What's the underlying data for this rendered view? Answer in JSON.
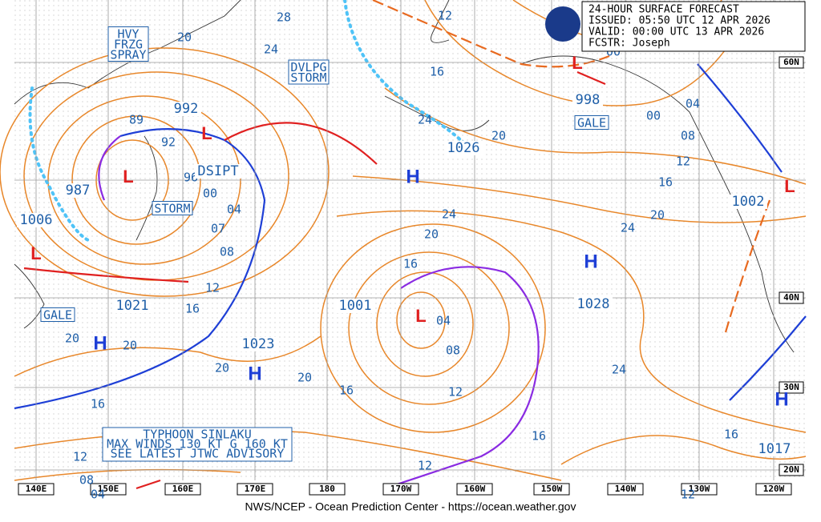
{
  "header": {
    "title": "24-HOUR SURFACE FORECAST",
    "issued": "ISSUED:  05:50 UTC 12 APR 2026",
    "valid": "VALID:   00:00 UTC 13 APR 2026",
    "forecaster": "FCSTR:   Joseph"
  },
  "footer": "NWS/NCEP - Ocean Prediction Center - https://ocean.weather.gov",
  "longitude_labels": [
    "140E",
    "150E",
    "160E",
    "170E",
    "180",
    "170W",
    "160W",
    "150W",
    "140W",
    "130W",
    "120W"
  ],
  "latitude_labels": [
    "60N",
    "40N",
    "30N",
    "20N"
  ],
  "boxed_labels": [
    "HVY\nFRZG\nSPRAY",
    "DVLPG\nSTORM",
    "STORM",
    "GALE",
    "GALE"
  ],
  "map_labels": [
    "992",
    "89",
    "92",
    "96",
    "DSIPT",
    "00",
    "987",
    "04",
    "07",
    "08",
    "1006",
    "12",
    "1021",
    "16",
    "20",
    "20",
    "1023",
    "20",
    "20",
    "1001",
    "04",
    "08",
    "16",
    "12",
    "16",
    "16",
    "12",
    "08",
    "04",
    "12",
    "28",
    "24",
    "20",
    "12",
    "16",
    "24",
    "1026",
    "20",
    "998",
    "00",
    "00",
    "04",
    "08",
    "12",
    "16",
    "20",
    "24",
    "1002",
    "24",
    "20",
    "16",
    "1028",
    "24",
    "16",
    "1017",
    "12"
  ],
  "highs": [
    "H",
    "H",
    "H",
    "H",
    "H"
  ],
  "lows": [
    "L",
    "L",
    "L",
    "L",
    "L",
    "L"
  ],
  "typhoon_advisory": [
    "TYPHOON SINLAKU",
    "MAX WINDS 130 KT G 160 KT",
    "SEE LATEST JTWC ADVISORY"
  ]
}
